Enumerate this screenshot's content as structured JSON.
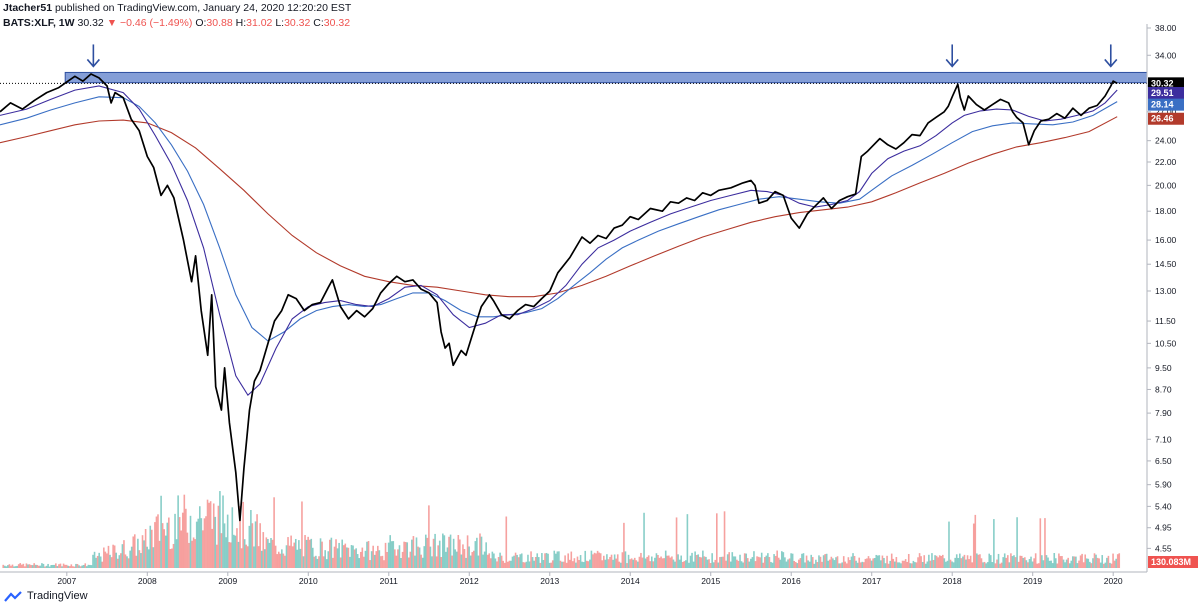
{
  "header": {
    "publisher": "Jtacher51",
    "published_text": "published on TradingView.com, January 24, 2020 12:20:20 EST",
    "symbol": "BATS:XLF, 1W",
    "last": "30.32",
    "change": "▼ −0.46 (−1.49%)",
    "o_label": "O:",
    "o_value": "30.88",
    "h_label": "H:",
    "h_value": "31.02",
    "l_label": "L:",
    "l_value": "30.32",
    "c_label": "C:",
    "c_value": "30.32"
  },
  "footer": {
    "brand": "TradingView"
  },
  "colors": {
    "price": "#000000",
    "ma_fast": "#3c2d9e",
    "ma_mid": "#3a6fc4",
    "ma_slow": "#b23a2b",
    "vol_up": "#26a69a",
    "vol_down": "#ef5350",
    "resistance": "#5b7ec9"
  },
  "chart_data": {
    "type": "line",
    "x_axis": {
      "ticks": [
        "2007",
        "2008",
        "2009",
        "2010",
        "2011",
        "2012",
        "2013",
        "2014",
        "2015",
        "2016",
        "2017",
        "2018",
        "2019",
        "2020"
      ],
      "range": [
        2006.17,
        2020.42
      ]
    },
    "y_axis": {
      "scale": "log",
      "ticks": [
        "38.00",
        "34.00",
        "30.00",
        "27.00",
        "24.00",
        "22.00",
        "20.00",
        "18.00",
        "16.00",
        "14.50",
        "13.00",
        "11.50",
        "10.50",
        "9.50",
        "8.70",
        "7.90",
        "7.10",
        "6.50",
        "5.90",
        "5.40",
        "4.95",
        "4.55"
      ],
      "ylim": [
        4.2,
        38.0
      ]
    },
    "price_labels": [
      {
        "value": "30.32",
        "color": "#000000"
      },
      {
        "value": "29.51",
        "color": "#3c2d9e"
      },
      {
        "value": "28.14",
        "color": "#3a6fc4"
      },
      {
        "value": "26.46",
        "color": "#b23a2b"
      },
      {
        "value": "130.083M",
        "color": "#ef5350"
      }
    ],
    "resistance_zone": {
      "from": 30.4,
      "to": 31.7,
      "start": 2006.98,
      "end": 2020.42
    },
    "arrows": [
      2007.33,
      2018.0,
      2019.97
    ],
    "price": [
      [
        2006.17,
        27.0
      ],
      [
        2006.3,
        28.0
      ],
      [
        2006.45,
        27.3
      ],
      [
        2006.6,
        28.3
      ],
      [
        2006.75,
        29.2
      ],
      [
        2006.9,
        29.8
      ],
      [
        2007.0,
        30.5
      ],
      [
        2007.1,
        31.2
      ],
      [
        2007.2,
        30.6
      ],
      [
        2007.3,
        31.5
      ],
      [
        2007.4,
        31.0
      ],
      [
        2007.5,
        30.0
      ],
      [
        2007.55,
        28.0
      ],
      [
        2007.6,
        29.2
      ],
      [
        2007.7,
        28.6
      ],
      [
        2007.8,
        26.2
      ],
      [
        2007.9,
        25.0
      ],
      [
        2008.0,
        22.5
      ],
      [
        2008.08,
        21.5
      ],
      [
        2008.17,
        19.2
      ],
      [
        2008.25,
        20.0
      ],
      [
        2008.33,
        19.0
      ],
      [
        2008.45,
        16.0
      ],
      [
        2008.55,
        13.5
      ],
      [
        2008.6,
        15.0
      ],
      [
        2008.67,
        12.0
      ],
      [
        2008.75,
        10.0
      ],
      [
        2008.8,
        12.8
      ],
      [
        2008.85,
        8.8
      ],
      [
        2008.92,
        8.0
      ],
      [
        2008.96,
        9.5
      ],
      [
        2009.02,
        7.6
      ],
      [
        2009.1,
        6.2
      ],
      [
        2009.15,
        5.1
      ],
      [
        2009.2,
        6.3
      ],
      [
        2009.27,
        8.0
      ],
      [
        2009.33,
        9.0
      ],
      [
        2009.4,
        9.4
      ],
      [
        2009.5,
        10.5
      ],
      [
        2009.58,
        11.5
      ],
      [
        2009.67,
        12.0
      ],
      [
        2009.75,
        12.8
      ],
      [
        2009.85,
        12.6
      ],
      [
        2009.95,
        12.0
      ],
      [
        2010.05,
        12.3
      ],
      [
        2010.15,
        12.4
      ],
      [
        2010.25,
        13.2
      ],
      [
        2010.3,
        13.6
      ],
      [
        2010.4,
        12.2
      ],
      [
        2010.5,
        11.6
      ],
      [
        2010.6,
        12.0
      ],
      [
        2010.7,
        11.7
      ],
      [
        2010.8,
        12.1
      ],
      [
        2010.9,
        12.9
      ],
      [
        2011.0,
        13.4
      ],
      [
        2011.1,
        13.8
      ],
      [
        2011.2,
        13.5
      ],
      [
        2011.3,
        13.6
      ],
      [
        2011.4,
        13.1
      ],
      [
        2011.5,
        12.9
      ],
      [
        2011.6,
        12.4
      ],
      [
        2011.65,
        11.0
      ],
      [
        2011.7,
        10.3
      ],
      [
        2011.75,
        10.5
      ],
      [
        2011.8,
        9.6
      ],
      [
        2011.9,
        10.2
      ],
      [
        2011.96,
        10.0
      ],
      [
        2012.05,
        11.0
      ],
      [
        2012.15,
        12.2
      ],
      [
        2012.25,
        12.8
      ],
      [
        2012.3,
        12.5
      ],
      [
        2012.4,
        11.8
      ],
      [
        2012.5,
        11.6
      ],
      [
        2012.6,
        12.0
      ],
      [
        2012.7,
        12.3
      ],
      [
        2012.8,
        12.2
      ],
      [
        2012.9,
        12.6
      ],
      [
        2013.0,
        13.0
      ],
      [
        2013.1,
        14.0
      ],
      [
        2013.25,
        14.9
      ],
      [
        2013.4,
        16.2
      ],
      [
        2013.5,
        15.8
      ],
      [
        2013.6,
        16.3
      ],
      [
        2013.7,
        16.1
      ],
      [
        2013.8,
        16.8
      ],
      [
        2013.9,
        17.0
      ],
      [
        2014.0,
        17.6
      ],
      [
        2014.1,
        17.4
      ],
      [
        2014.25,
        18.2
      ],
      [
        2014.4,
        18.0
      ],
      [
        2014.5,
        18.7
      ],
      [
        2014.6,
        18.6
      ],
      [
        2014.7,
        19.0
      ],
      [
        2014.8,
        18.8
      ],
      [
        2014.9,
        19.4
      ],
      [
        2015.0,
        19.2
      ],
      [
        2015.1,
        19.6
      ],
      [
        2015.25,
        19.8
      ],
      [
        2015.4,
        20.2
      ],
      [
        2015.5,
        20.4
      ],
      [
        2015.55,
        20.0
      ],
      [
        2015.6,
        18.6
      ],
      [
        2015.7,
        18.8
      ],
      [
        2015.8,
        19.5
      ],
      [
        2015.9,
        19.2
      ],
      [
        2016.0,
        17.5
      ],
      [
        2016.1,
        16.8
      ],
      [
        2016.2,
        17.8
      ],
      [
        2016.3,
        18.4
      ],
      [
        2016.4,
        19.0
      ],
      [
        2016.5,
        18.2
      ],
      [
        2016.6,
        18.8
      ],
      [
        2016.7,
        19.1
      ],
      [
        2016.8,
        19.3
      ],
      [
        2016.87,
        22.5
      ],
      [
        2016.95,
        23.0
      ],
      [
        2017.0,
        23.4
      ],
      [
        2017.1,
        24.2
      ],
      [
        2017.2,
        23.6
      ],
      [
        2017.3,
        23.2
      ],
      [
        2017.4,
        23.8
      ],
      [
        2017.5,
        24.6
      ],
      [
        2017.6,
        24.5
      ],
      [
        2017.7,
        25.8
      ],
      [
        2017.8,
        26.4
      ],
      [
        2017.9,
        27.0
      ],
      [
        2017.95,
        27.6
      ],
      [
        2018.0,
        28.7
      ],
      [
        2018.07,
        30.2
      ],
      [
        2018.1,
        28.6
      ],
      [
        2018.15,
        27.2
      ],
      [
        2018.2,
        28.8
      ],
      [
        2018.3,
        27.8
      ],
      [
        2018.4,
        27.2
      ],
      [
        2018.5,
        27.8
      ],
      [
        2018.6,
        28.4
      ],
      [
        2018.7,
        28.0
      ],
      [
        2018.75,
        27.0
      ],
      [
        2018.8,
        26.4
      ],
      [
        2018.88,
        25.8
      ],
      [
        2018.95,
        23.6
      ],
      [
        2019.02,
        25.0
      ],
      [
        2019.1,
        26.0
      ],
      [
        2019.2,
        26.2
      ],
      [
        2019.3,
        26.8
      ],
      [
        2019.4,
        26.3
      ],
      [
        2019.5,
        27.4
      ],
      [
        2019.6,
        26.6
      ],
      [
        2019.7,
        27.4
      ],
      [
        2019.8,
        27.7
      ],
      [
        2019.9,
        28.8
      ],
      [
        2019.97,
        30.0
      ],
      [
        2020.0,
        30.6
      ],
      [
        2020.05,
        30.32
      ]
    ],
    "ma_fast": [
      [
        2006.17,
        26.6
      ],
      [
        2006.5,
        27.3
      ],
      [
        2006.8,
        28.4
      ],
      [
        2007.1,
        29.5
      ],
      [
        2007.4,
        30.0
      ],
      [
        2007.7,
        29.2
      ],
      [
        2007.9,
        27.3
      ],
      [
        2008.1,
        24.5
      ],
      [
        2008.3,
        21.8
      ],
      [
        2008.5,
        18.8
      ],
      [
        2008.7,
        15.5
      ],
      [
        2008.9,
        11.8
      ],
      [
        2009.1,
        9.2
      ],
      [
        2009.25,
        8.5
      ],
      [
        2009.4,
        8.9
      ],
      [
        2009.6,
        10.3
      ],
      [
        2009.8,
        11.6
      ],
      [
        2010.0,
        12.2
      ],
      [
        2010.2,
        12.4
      ],
      [
        2010.4,
        12.5
      ],
      [
        2010.6,
        12.3
      ],
      [
        2010.8,
        12.2
      ],
      [
        2011.0,
        12.6
      ],
      [
        2011.2,
        13.2
      ],
      [
        2011.4,
        13.3
      ],
      [
        2011.6,
        12.8
      ],
      [
        2011.8,
        11.8
      ],
      [
        2012.0,
        11.2
      ],
      [
        2012.2,
        11.4
      ],
      [
        2012.4,
        11.8
      ],
      [
        2012.6,
        11.8
      ],
      [
        2012.8,
        12.1
      ],
      [
        2013.0,
        12.5
      ],
      [
        2013.2,
        13.3
      ],
      [
        2013.4,
        14.5
      ],
      [
        2013.6,
        15.5
      ],
      [
        2013.8,
        16.0
      ],
      [
        2014.0,
        16.6
      ],
      [
        2014.25,
        17.2
      ],
      [
        2014.5,
        17.8
      ],
      [
        2014.75,
        18.3
      ],
      [
        2015.0,
        18.8
      ],
      [
        2015.25,
        19.2
      ],
      [
        2015.5,
        19.6
      ],
      [
        2015.7,
        19.5
      ],
      [
        2015.9,
        19.2
      ],
      [
        2016.1,
        18.6
      ],
      [
        2016.3,
        18.3
      ],
      [
        2016.5,
        18.5
      ],
      [
        2016.7,
        18.8
      ],
      [
        2016.85,
        19.5
      ],
      [
        2017.0,
        21.0
      ],
      [
        2017.2,
        22.3
      ],
      [
        2017.4,
        23.0
      ],
      [
        2017.6,
        23.5
      ],
      [
        2017.8,
        24.5
      ],
      [
        2018.0,
        25.8
      ],
      [
        2018.15,
        26.6
      ],
      [
        2018.35,
        27.1
      ],
      [
        2018.55,
        27.3
      ],
      [
        2018.75,
        27.2
      ],
      [
        2018.95,
        26.5
      ],
      [
        2019.15,
        26.0
      ],
      [
        2019.35,
        26.2
      ],
      [
        2019.55,
        26.6
      ],
      [
        2019.75,
        27.1
      ],
      [
        2019.9,
        28.0
      ],
      [
        2020.05,
        29.51
      ]
    ],
    "ma_mid": [
      [
        2006.17,
        25.6
      ],
      [
        2006.5,
        26.3
      ],
      [
        2006.8,
        27.2
      ],
      [
        2007.1,
        28.0
      ],
      [
        2007.4,
        28.7
      ],
      [
        2007.7,
        28.6
      ],
      [
        2007.9,
        27.6
      ],
      [
        2008.1,
        25.8
      ],
      [
        2008.3,
        23.6
      ],
      [
        2008.5,
        21.2
      ],
      [
        2008.7,
        18.5
      ],
      [
        2008.9,
        15.5
      ],
      [
        2009.1,
        12.8
      ],
      [
        2009.3,
        11.2
      ],
      [
        2009.5,
        10.6
      ],
      [
        2009.7,
        11.0
      ],
      [
        2009.9,
        11.6
      ],
      [
        2010.1,
        12.0
      ],
      [
        2010.3,
        12.2
      ],
      [
        2010.5,
        12.3
      ],
      [
        2010.7,
        12.2
      ],
      [
        2010.9,
        12.3
      ],
      [
        2011.1,
        12.6
      ],
      [
        2011.3,
        12.9
      ],
      [
        2011.5,
        12.9
      ],
      [
        2011.7,
        12.5
      ],
      [
        2011.9,
        12.0
      ],
      [
        2012.1,
        11.7
      ],
      [
        2012.3,
        11.7
      ],
      [
        2012.5,
        11.8
      ],
      [
        2012.7,
        11.9
      ],
      [
        2012.9,
        12.1
      ],
      [
        2013.1,
        12.6
      ],
      [
        2013.3,
        13.3
      ],
      [
        2013.5,
        14.0
      ],
      [
        2013.7,
        14.8
      ],
      [
        2013.9,
        15.5
      ],
      [
        2014.1,
        16.0
      ],
      [
        2014.35,
        16.6
      ],
      [
        2014.6,
        17.1
      ],
      [
        2014.85,
        17.6
      ],
      [
        2015.1,
        18.1
      ],
      [
        2015.35,
        18.5
      ],
      [
        2015.6,
        18.9
      ],
      [
        2015.85,
        19.1
      ],
      [
        2016.1,
        18.9
      ],
      [
        2016.35,
        18.7
      ],
      [
        2016.6,
        18.6
      ],
      [
        2016.85,
        18.9
      ],
      [
        2017.0,
        19.6
      ],
      [
        2017.25,
        20.8
      ],
      [
        2017.5,
        21.7
      ],
      [
        2017.75,
        22.7
      ],
      [
        2018.0,
        23.8
      ],
      [
        2018.25,
        24.9
      ],
      [
        2018.5,
        25.5
      ],
      [
        2018.75,
        25.8
      ],
      [
        2019.0,
        25.7
      ],
      [
        2019.25,
        25.6
      ],
      [
        2019.5,
        25.9
      ],
      [
        2019.75,
        26.6
      ],
      [
        2020.05,
        28.14
      ]
    ],
    "ma_slow": [
      [
        2006.17,
        23.8
      ],
      [
        2006.5,
        24.4
      ],
      [
        2006.8,
        25.0
      ],
      [
        2007.1,
        25.6
      ],
      [
        2007.4,
        26.0
      ],
      [
        2007.7,
        26.1
      ],
      [
        2008.0,
        25.8
      ],
      [
        2008.3,
        24.8
      ],
      [
        2008.6,
        23.3
      ],
      [
        2008.9,
        21.4
      ],
      [
        2009.2,
        19.6
      ],
      [
        2009.5,
        17.8
      ],
      [
        2009.8,
        16.3
      ],
      [
        2010.1,
        15.2
      ],
      [
        2010.4,
        14.4
      ],
      [
        2010.7,
        13.8
      ],
      [
        2011.0,
        13.5
      ],
      [
        2011.3,
        13.3
      ],
      [
        2011.6,
        13.2
      ],
      [
        2011.9,
        13.0
      ],
      [
        2012.2,
        12.8
      ],
      [
        2012.5,
        12.7
      ],
      [
        2012.8,
        12.7
      ],
      [
        2013.1,
        12.9
      ],
      [
        2013.4,
        13.3
      ],
      [
        2013.7,
        13.8
      ],
      [
        2014.0,
        14.4
      ],
      [
        2014.3,
        15.0
      ],
      [
        2014.6,
        15.6
      ],
      [
        2014.9,
        16.2
      ],
      [
        2015.2,
        16.7
      ],
      [
        2015.5,
        17.2
      ],
      [
        2015.8,
        17.6
      ],
      [
        2016.1,
        17.9
      ],
      [
        2016.4,
        18.1
      ],
      [
        2016.7,
        18.3
      ],
      [
        2017.0,
        18.7
      ],
      [
        2017.3,
        19.4
      ],
      [
        2017.6,
        20.2
      ],
      [
        2017.9,
        21.0
      ],
      [
        2018.2,
        21.9
      ],
      [
        2018.5,
        22.7
      ],
      [
        2018.8,
        23.4
      ],
      [
        2019.1,
        23.8
      ],
      [
        2019.4,
        24.3
      ],
      [
        2019.7,
        24.9
      ],
      [
        2020.05,
        26.46
      ]
    ],
    "volume_unit_label": "130.083M"
  }
}
